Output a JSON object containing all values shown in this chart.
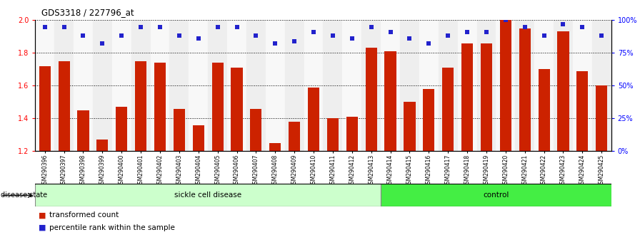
{
  "title": "GDS3318 / 227796_at",
  "samples": [
    "GSM290396",
    "GSM290397",
    "GSM290398",
    "GSM290399",
    "GSM290400",
    "GSM290401",
    "GSM290402",
    "GSM290403",
    "GSM290404",
    "GSM290405",
    "GSM290406",
    "GSM290407",
    "GSM290408",
    "GSM290409",
    "GSM290410",
    "GSM290411",
    "GSM290412",
    "GSM290413",
    "GSM290414",
    "GSM290415",
    "GSM290416",
    "GSM290417",
    "GSM290418",
    "GSM290419",
    "GSM290420",
    "GSM290421",
    "GSM290422",
    "GSM290423",
    "GSM290424",
    "GSM290425"
  ],
  "bar_values": [
    1.72,
    1.75,
    1.45,
    1.27,
    1.47,
    1.75,
    1.74,
    1.46,
    1.36,
    1.74,
    1.71,
    1.46,
    1.25,
    1.38,
    1.59,
    1.4,
    1.41,
    1.83,
    1.81,
    1.5,
    1.58,
    1.71,
    1.86,
    1.86,
    2.0,
    1.95,
    1.7,
    1.93,
    1.69,
    1.6
  ],
  "percentile_values": [
    95,
    95,
    88,
    82,
    88,
    95,
    95,
    88,
    86,
    95,
    95,
    88,
    82,
    84,
    91,
    88,
    86,
    95,
    91,
    86,
    82,
    88,
    91,
    91,
    100,
    95,
    88,
    97,
    95,
    88
  ],
  "sickle_count": 18,
  "control_count": 12,
  "ylim_left": [
    1.2,
    2.0
  ],
  "ylim_right": [
    0,
    100
  ],
  "yticks_left": [
    1.2,
    1.4,
    1.6,
    1.8,
    2.0
  ],
  "yticks_right": [
    0,
    25,
    50,
    75,
    100
  ],
  "ytick_labels_right": [
    "0%",
    "25%",
    "50%",
    "75%",
    "100%"
  ],
  "bar_color": "#cc2200",
  "percentile_color": "#2222cc",
  "sickle_color": "#ccffcc",
  "control_color": "#44ee44",
  "bar_width": 0.6,
  "grid_color": "black"
}
